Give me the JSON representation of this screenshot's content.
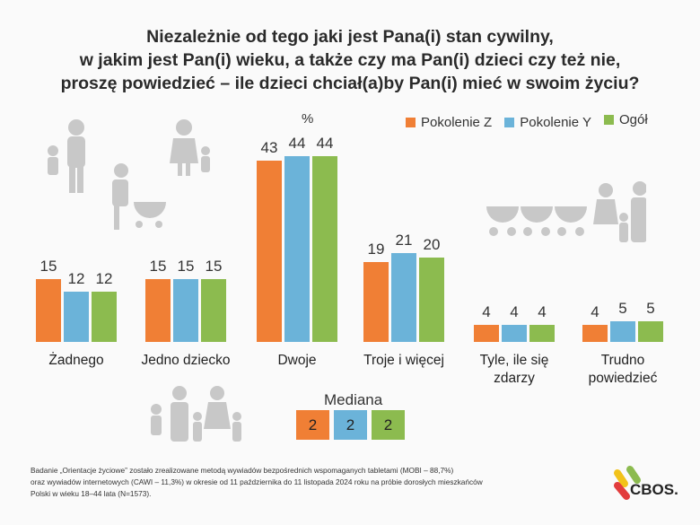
{
  "title": [
    "Niezależnie od tego jaki jest Pana(i) stan cywilny,",
    "w jakim jest Pan(i) wieku, a także czy ma Pan(i) dzieci czy też nie,",
    "proszę powiedzieć – ile dzieci chciał(a)by Pan(i) mieć w swoim życiu?"
  ],
  "unit": "%",
  "colors": {
    "z": "#f07f35",
    "y": "#6bb3d9",
    "all": "#8cbb4f"
  },
  "chart_data": {
    "type": "bar",
    "title": "Niezależnie od tego jaki jest Pana(i) stan cywilny, w jakim jest Pan(i) wieku, a także czy ma Pan(i) dzieci czy też nie, proszę powiedzieć – ile dzieci chciał(a)by Pan(i) mieć w swoim życiu?",
    "ylabel": "%",
    "categories": [
      "Żadnego",
      "Jedno dziecko",
      "Dwoje",
      "Troje i więcej",
      "Tyle, ile się zdarzy",
      "Trudno powiedzieć"
    ],
    "series": [
      {
        "name": "Pokolenie Z",
        "values": [
          15,
          15,
          43,
          19,
          4,
          4
        ]
      },
      {
        "name": "Pokolenie Y",
        "values": [
          12,
          15,
          44,
          21,
          4,
          5
        ]
      },
      {
        "name": "Ogół",
        "values": [
          12,
          15,
          44,
          20,
          4,
          5
        ]
      }
    ],
    "ylim": [
      0,
      50
    ],
    "grid": false,
    "legend": "top-right"
  },
  "median": {
    "label": "Mediana",
    "values": [
      "2",
      "2",
      "2"
    ]
  },
  "footnote": [
    "Badanie „Orientacje życiowe” zostało zrealizowane metodą wywiadów bezpośrednich wspomaganych tabletami (MOBI – 88,7%)",
    "oraz wywiadów internetowych (CAWI – 11,3%) w okresie od 11 października do 11 listopada 2024 roku na próbie dorosłych mieszkańców",
    "Polski w wieku 18–44 lata (N=1573)."
  ],
  "logo": "CBOS."
}
